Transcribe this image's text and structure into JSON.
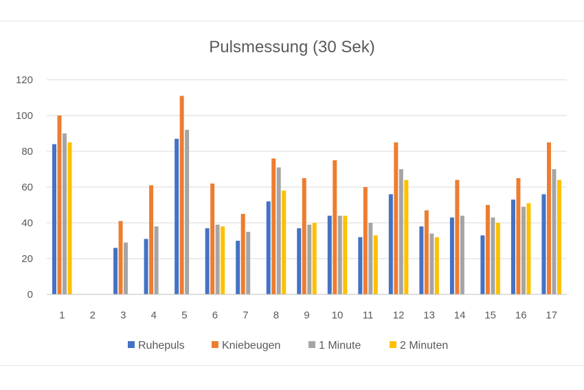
{
  "chart_data": {
    "type": "bar",
    "title": "Pulsmessung (30 Sek)",
    "xlabel": "",
    "ylabel": "",
    "ylim": [
      0,
      120
    ],
    "yticks": [
      "0",
      "20",
      "40",
      "60",
      "80",
      "100",
      "120"
    ],
    "grid": true,
    "legend_position": "bottom",
    "categories": [
      "1",
      "2",
      "3",
      "4",
      "5",
      "6",
      "7",
      "8",
      "9",
      "10",
      "11",
      "12",
      "13",
      "14",
      "15",
      "16",
      "17"
    ],
    "series": [
      {
        "name": "Ruhepuls",
        "color": "#4472c4",
        "values": [
          84,
          null,
          26,
          31,
          87,
          37,
          30,
          52,
          37,
          44,
          32,
          56,
          38,
          43,
          33,
          53,
          56
        ]
      },
      {
        "name": "Kniebeugen",
        "color": "#ed7d31",
        "values": [
          100,
          null,
          41,
          61,
          111,
          62,
          45,
          76,
          65,
          75,
          60,
          85,
          47,
          64,
          50,
          65,
          85
        ]
      },
      {
        "name": "1 Minute",
        "color": "#a5a5a5",
        "values": [
          90,
          null,
          29,
          38,
          92,
          39,
          35,
          71,
          39,
          44,
          40,
          70,
          34,
          44,
          43,
          49,
          70
        ]
      },
      {
        "name": "2 Minuten",
        "color": "#ffc000",
        "values": [
          85,
          null,
          null,
          null,
          null,
          38,
          null,
          58,
          40,
          44,
          33,
          64,
          32,
          null,
          40,
          51,
          64
        ]
      }
    ]
  }
}
